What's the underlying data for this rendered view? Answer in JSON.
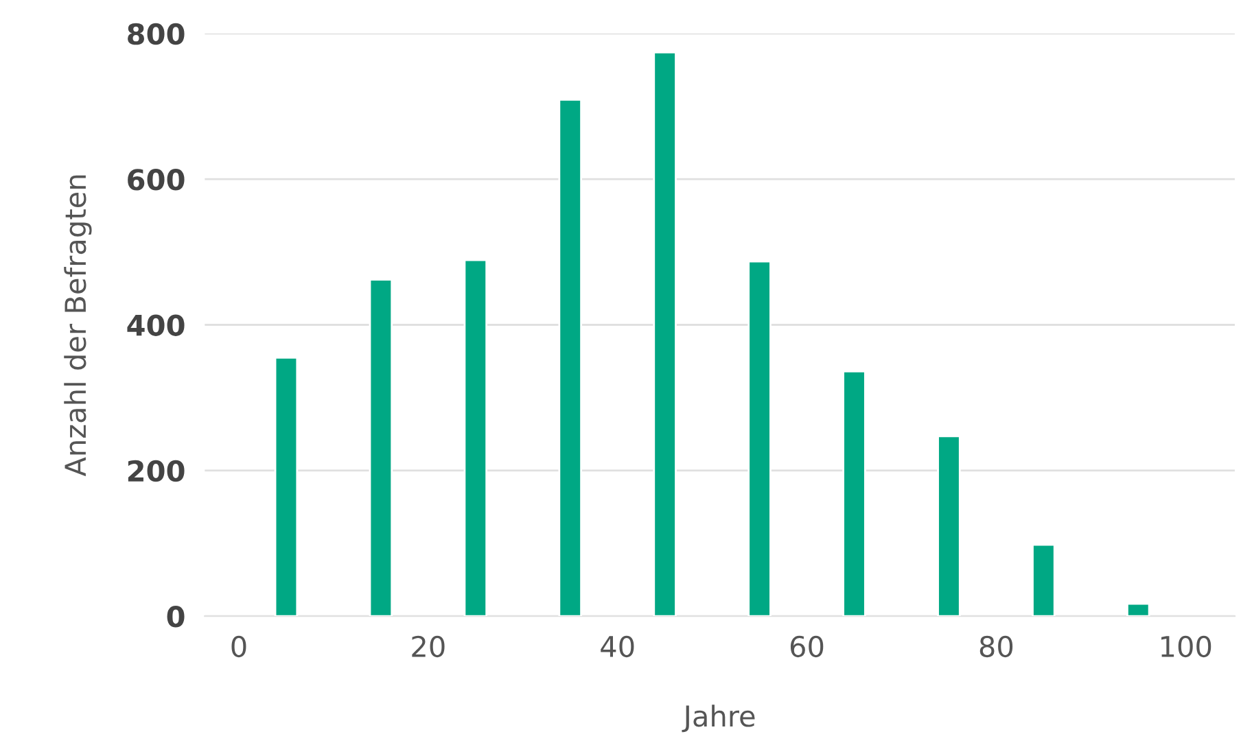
{
  "chart_data": {
    "type": "bar",
    "xlabel": "Jahre",
    "ylabel": "Anzahl der Befragten",
    "x": [
      5,
      15,
      25,
      35,
      45,
      55,
      65,
      75,
      85,
      95
    ],
    "values": [
      355,
      462,
      489,
      709,
      774,
      487,
      336,
      247,
      98,
      17
    ],
    "color": "#00a884",
    "xlim": [
      -3.6,
      105.2
    ],
    "xticks": [
      0,
      20,
      40,
      60,
      80,
      100
    ],
    "ylim": [
      0,
      800
    ],
    "yticks": [
      0,
      200,
      400,
      600,
      800
    ],
    "grid": "y",
    "legend": false
  }
}
